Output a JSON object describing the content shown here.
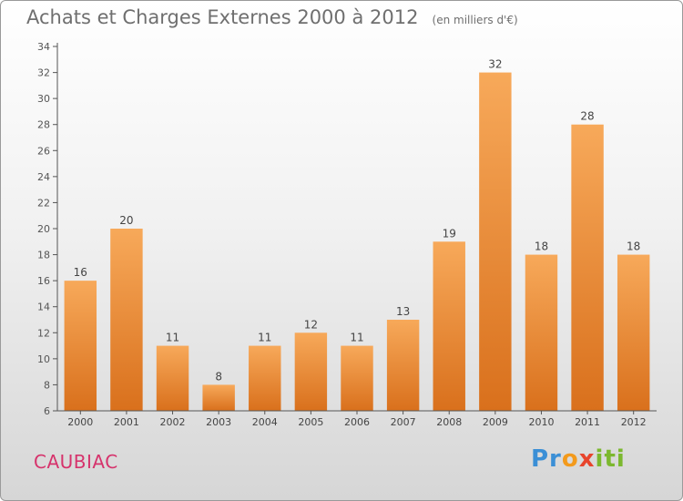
{
  "chart_data": {
    "type": "bar",
    "title": "Achats et Charges Externes 2000 à 2012",
    "subtitle": "(en milliers d'€)",
    "xlabel": "",
    "ylabel": "",
    "categories": [
      "2000",
      "2001",
      "2002",
      "2003",
      "2004",
      "2005",
      "2006",
      "2007",
      "2008",
      "2009",
      "2010",
      "2011",
      "2012"
    ],
    "values": [
      16,
      20,
      11,
      8,
      11,
      12,
      11,
      13,
      19,
      32,
      18,
      28,
      18
    ],
    "ylim": [
      6,
      34
    ],
    "yticks": [
      6,
      8,
      10,
      12,
      14,
      16,
      18,
      20,
      22,
      24,
      26,
      28,
      30,
      32,
      34
    ],
    "grid": false,
    "legend": "none",
    "bar_color_top": "#f7a95a",
    "bar_color_bottom": "#d9701c"
  },
  "footer": {
    "commune": "CAUBIAC",
    "logo": {
      "p1": "Pr",
      "p2": "o",
      "p3": "x",
      "p4": "iti"
    }
  }
}
